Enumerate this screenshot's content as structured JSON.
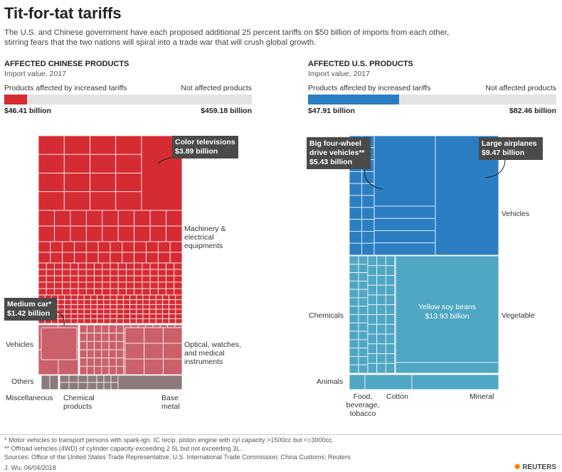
{
  "title": "Tit-for-tat tariffs",
  "subtitle_line1": "The U.S. and Chinese government have each proposed additional 25 percent tariffs on $50 billion of imports from each other,",
  "subtitle_line2": "stirring fears that the two nations will spiral into a trade war that will crush global growth.",
  "colors": {
    "china": "#d52b33",
    "us": "#2b7ec2",
    "us_teal": "#4fa7c4",
    "bar_bg": "#e3e3e3"
  },
  "china_panel": {
    "heading": "AFFECTED CHINESE PRODUCTS",
    "subheading": "Import value, 2017",
    "affected_label": "Products affected by increased tariffs",
    "not_affected_label": "Not affected products",
    "affected_value": "$46.41 billion",
    "not_affected_value": "$459.18 billion",
    "categories": {
      "machinery": "Machinery & electrical equipments",
      "vehicles": "Vehicles",
      "optical": "Optical, watches, and medical instruments",
      "others": "Others",
      "miscellaneous": "Miscellaneous",
      "chemical": "Chemical products",
      "base_metal": "Base metal"
    },
    "callout_tv_name": "Color televisions",
    "callout_tv_value": "$3.89 billion",
    "callout_car_name": "Medium car*",
    "callout_car_value": "$1.42 billion"
  },
  "us_panel": {
    "heading": "AFFECTED U.S. PRODUCTS",
    "subheading": "Import value, 2017",
    "affected_label": "Products affected by increased tariffs",
    "not_affected_label": "Not affected products",
    "affected_value": "$47.91 billion",
    "not_affected_value": "$82.46 billion",
    "categories": {
      "vehicles": "Vehicles",
      "chemicals": "Chemicals",
      "vegetable": "Vegetable",
      "animals": "Animals",
      "food": "Food, beverage, tobacco",
      "cotton": "Cotton",
      "mineral": "Mineral"
    },
    "callout_4wd_name": "Big four-wheel drive vehicles**",
    "callout_4wd_value": "$5.43 billion",
    "callout_air_name": "Large airplanes",
    "callout_air_value": "$9.47 billion",
    "soy_name": "Yellow soy beans",
    "soy_value": "$13.93 billion"
  },
  "chart_data": [
    {
      "type": "bar",
      "title": "AFFECTED CHINESE PRODUCTS",
      "subtitle": "Import value, 2017",
      "categories": [
        "Products affected by increased tariffs",
        "Not affected products"
      ],
      "values": [
        46.41,
        459.18
      ],
      "unit": "$ billion"
    },
    {
      "type": "bar",
      "title": "AFFECTED U.S. PRODUCTS",
      "subtitle": "Import value, 2017",
      "categories": [
        "Products affected by increased tariffs",
        "Not affected products"
      ],
      "values": [
        47.91,
        82.46
      ],
      "unit": "$ billion"
    },
    {
      "type": "treemap",
      "title": "Affected Chinese products",
      "highlighted": [
        {
          "name": "Color televisions",
          "value": 3.89
        },
        {
          "name": "Medium car*",
          "value": 1.42
        }
      ],
      "groups": [
        "Machinery & electrical equipments",
        "Vehicles",
        "Optical, watches, and medical instruments",
        "Others",
        "Miscellaneous",
        "Chemical products",
        "Base metal"
      ]
    },
    {
      "type": "treemap",
      "title": "Affected U.S. products",
      "highlighted": [
        {
          "name": "Big four-wheel drive vehicles**",
          "value": 5.43
        },
        {
          "name": "Large airplanes",
          "value": 9.47
        },
        {
          "name": "Yellow soy beans",
          "value": 13.93
        }
      ],
      "groups": [
        "Vehicles",
        "Chemicals",
        "Vegetable",
        "Animals",
        "Food, beverage, tobacco",
        "Cotton",
        "Mineral"
      ]
    }
  ],
  "footnotes": {
    "note1": "* Motor vehicles to transport persons with spark-ign. IC recip. piston engine with cyl capacity >1500cc but <=3000cc.",
    "note2": "** Offroad vehicles (4WD) of cylinder capacity exceeding 2.5L but not exceeding 3L.",
    "sources": "Sources: Office of the United States Trade Representative; U.S. International Trade Commission; China Customs; Reuters",
    "byline": "J. Wu, 06/04/2018",
    "brand": "REUTERS"
  }
}
